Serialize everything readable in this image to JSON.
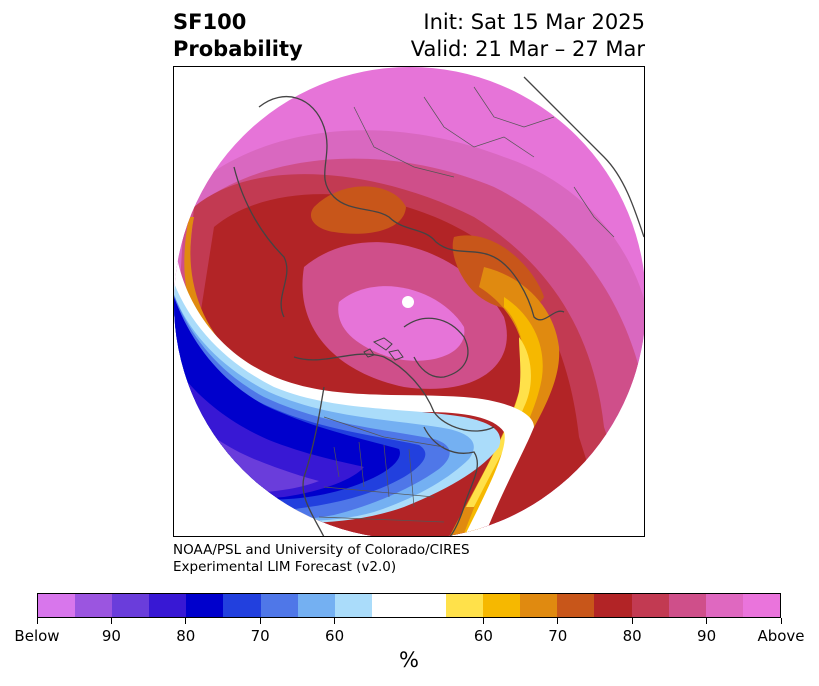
{
  "header": {
    "title_line1": "SF100",
    "title_line2": "Probability",
    "init_text": "Init: Sat 15 Mar 2025",
    "valid_text": "Valid: 21 Mar – 27 Mar"
  },
  "credit": {
    "line1": "NOAA/PSL and University of Colorado/CIRES",
    "line2": "Experimental LIM Forecast (v2.0)"
  },
  "colorbar": {
    "colors": [
      "#d876ec",
      "#9b55e0",
      "#6a3ddb",
      "#3818d4",
      "#0000cc",
      "#2240de",
      "#4f77e8",
      "#74b0f2",
      "#aadcfa",
      "#ffffff",
      "#ffffff",
      "#ffe14a",
      "#f6b800",
      "#e08a10",
      "#c8561a",
      "#b22426",
      "#c23a52",
      "#cf4f8a",
      "#df68c0",
      "#ea74dc"
    ],
    "tick_labels": [
      "Below",
      "90",
      "80",
      "70",
      "60",
      "60",
      "70",
      "80",
      "90",
      "Above"
    ],
    "unit_label": "%"
  },
  "palette": {
    "land_border": "#444444",
    "state_border": "#555555",
    "frame": "#000000"
  }
}
